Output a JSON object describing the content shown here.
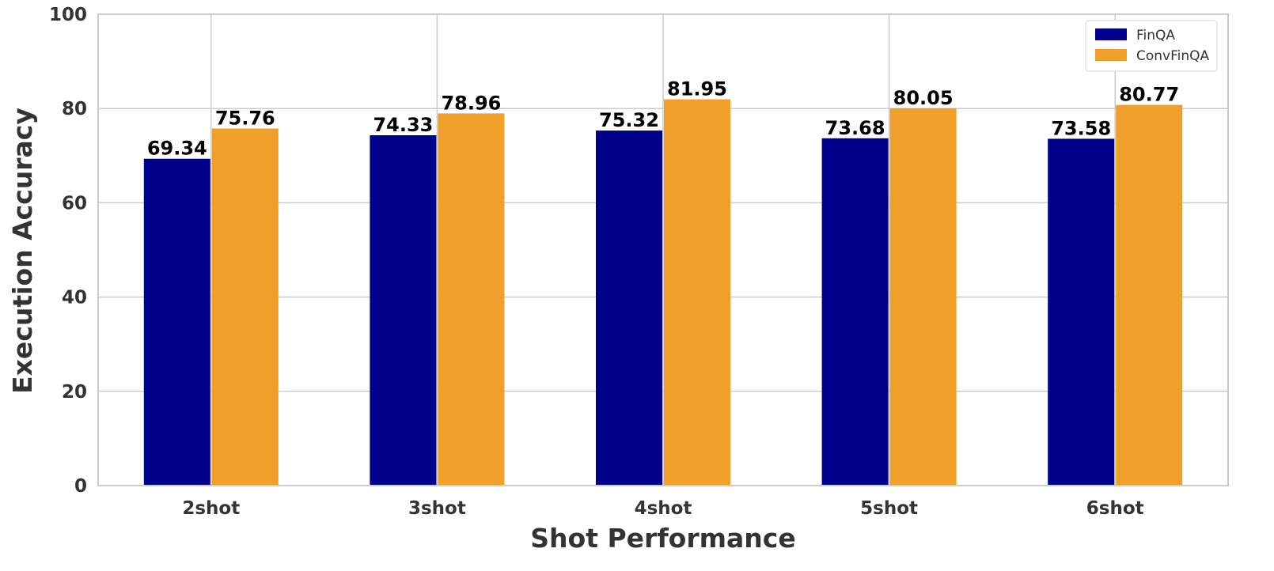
{
  "chart_data": {
    "type": "bar",
    "categories": [
      "2shot",
      "3shot",
      "4shot",
      "5shot",
      "6shot"
    ],
    "series": [
      {
        "name": "FinQA",
        "values": [
          69.34,
          74.33,
          75.32,
          73.68,
          73.58
        ],
        "labels": [
          "69.34",
          "74.33",
          "75.32",
          "73.68",
          "73.58"
        ],
        "color": "#00008b"
      },
      {
        "name": "ConvFinQA",
        "values": [
          75.76,
          78.96,
          81.95,
          80.05,
          80.77
        ],
        "labels": [
          "75.76",
          "78.96",
          "81.95",
          "80.05",
          "80.77"
        ],
        "color": "#f0a02a"
      }
    ],
    "xlabel": "Shot Performance",
    "ylabel": "Execution Accuracy",
    "ylim": [
      0,
      100
    ],
    "yticks": [
      0,
      20,
      40,
      60,
      80,
      100
    ],
    "ytick_labels": [
      "0",
      "20",
      "40",
      "60",
      "80",
      "100"
    ],
    "grid": true,
    "legend_position": "top-right",
    "grid_color": "#cccccc",
    "frame_color": "#cccccc"
  }
}
